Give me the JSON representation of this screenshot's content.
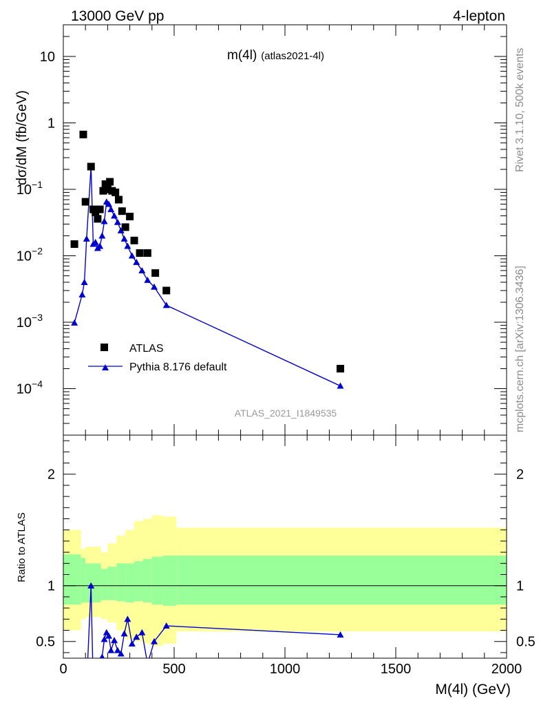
{
  "header": {
    "left": "13000 GeV pp",
    "right": "4-lepton"
  },
  "plot_title_main": "m(4l)",
  "plot_title_sub": "(atlas2021-4l)",
  "analysis_id": "ATLAS_2021_I1849535",
  "side_text": {
    "rivet": "Rivet 3.1.10,  500k events",
    "mcplots": "mcplots.cern.ch [arXiv:1306.3436]"
  },
  "legend": {
    "data_label": "ATLAS",
    "mc_label": "Pythia 8.176 default"
  },
  "colors": {
    "mc": "#0000cc",
    "data": "#000000",
    "band_inner": "#99ff99",
    "band_outer": "#ffff99"
  },
  "chart_data": [
    {
      "type": "scatter",
      "scale": "log",
      "ylabel": "dσ/dM (fb/GeV)",
      "xlim": [
        0,
        2000
      ],
      "ylim": [
        2e-05,
        30
      ],
      "y_ticks": [
        {
          "value": 0.0001,
          "mantissa": "10",
          "exp": "−4"
        },
        {
          "value": 0.001,
          "mantissa": "10",
          "exp": "−3"
        },
        {
          "value": 0.01,
          "mantissa": "10",
          "exp": "−2"
        },
        {
          "value": 0.1,
          "mantissa": "10",
          "exp": "−1"
        },
        {
          "value": 1,
          "mantissa": "1",
          "exp": ""
        },
        {
          "value": 10,
          "mantissa": "10",
          "exp": ""
        }
      ],
      "series": [
        {
          "name": "ATLAS",
          "x": [
            50,
            90,
            100,
            125,
            135,
            145,
            155,
            165,
            180,
            190,
            200,
            210,
            220,
            235,
            250,
            265,
            280,
            300,
            320,
            345,
            380,
            415,
            465,
            1250
          ],
          "y": [
            0.015,
            0.67,
            0.065,
            0.22,
            0.05,
            0.045,
            0.036,
            0.05,
            0.095,
            0.12,
            0.1,
            0.13,
            0.095,
            0.09,
            0.07,
            0.047,
            0.027,
            0.039,
            0.017,
            0.011,
            0.011,
            0.0055,
            0.003,
            0.0002
          ]
        },
        {
          "name": "Pythia 8.176 default",
          "x": [
            50,
            85,
            95,
            105,
            125,
            135,
            145,
            155,
            165,
            175,
            185,
            195,
            205,
            215,
            230,
            245,
            260,
            275,
            290,
            310,
            330,
            355,
            380,
            410,
            465,
            1250
          ],
          "y": [
            0.00098,
            0.0026,
            0.004,
            0.018,
            0.22,
            0.015,
            0.016,
            0.013,
            0.014,
            0.02,
            0.033,
            0.065,
            0.06,
            0.05,
            0.04,
            0.032,
            0.024,
            0.018,
            0.014,
            0.01,
            0.008,
            0.006,
            0.0043,
            0.0034,
            0.0018,
            0.00011
          ]
        }
      ]
    },
    {
      "type": "line",
      "ylabel": "Ratio to ATLAS",
      "xlabel": "M(4l) (GeV)",
      "xlim": [
        0,
        2000
      ],
      "ylim": [
        0.35,
        2.35
      ],
      "x_ticks": [
        "0",
        "500",
        "1000",
        "1500",
        "2000"
      ],
      "y_ticks": [
        "0.5",
        "1",
        "2"
      ],
      "ratio_x": [
        50,
        85,
        95,
        105,
        125,
        135,
        145,
        155,
        165,
        175,
        185,
        195,
        205,
        215,
        230,
        245,
        260,
        275,
        290,
        310,
        330,
        355,
        380,
        410,
        465,
        1250
      ],
      "ratio_y": [
        0.1,
        0.1,
        0.1,
        0.1,
        1.0,
        0.1,
        0.3,
        0.25,
        0.2,
        0.36,
        0.52,
        0.58,
        0.55,
        0.42,
        0.51,
        0.42,
        0.39,
        0.57,
        0.7,
        0.48,
        0.54,
        0.58,
        0.3,
        0.5,
        0.64,
        0.56
      ],
      "bands": [
        {
          "x0": 0,
          "x1": 80,
          "inner": [
            0.83,
            1.28
          ],
          "outer": [
            0.6,
            1.5
          ]
        },
        {
          "x0": 80,
          "x1": 100,
          "inner": [
            0.85,
            1.25
          ],
          "outer": [
            0.7,
            1.33
          ]
        },
        {
          "x0": 100,
          "x1": 170,
          "inner": [
            0.85,
            1.2
          ],
          "outer": [
            0.72,
            1.35
          ]
        },
        {
          "x0": 170,
          "x1": 200,
          "inner": [
            0.87,
            1.15
          ],
          "outer": [
            0.7,
            1.3
          ]
        },
        {
          "x0": 200,
          "x1": 240,
          "inner": [
            0.87,
            1.17
          ],
          "outer": [
            0.67,
            1.38
          ]
        },
        {
          "x0": 240,
          "x1": 280,
          "inner": [
            0.86,
            1.2
          ],
          "outer": [
            0.6,
            1.45
          ]
        },
        {
          "x0": 280,
          "x1": 320,
          "inner": [
            0.85,
            1.2
          ],
          "outer": [
            0.52,
            1.5
          ]
        },
        {
          "x0": 320,
          "x1": 360,
          "inner": [
            0.86,
            1.22
          ],
          "outer": [
            0.5,
            1.58
          ]
        },
        {
          "x0": 360,
          "x1": 400,
          "inner": [
            0.85,
            1.24
          ],
          "outer": [
            0.48,
            1.6
          ]
        },
        {
          "x0": 400,
          "x1": 450,
          "inner": [
            0.83,
            1.26
          ],
          "outer": [
            0.46,
            1.63
          ]
        },
        {
          "x0": 450,
          "x1": 510,
          "inner": [
            0.82,
            1.27
          ],
          "outer": [
            0.48,
            1.62
          ]
        },
        {
          "x0": 510,
          "x1": 2000,
          "inner": [
            0.83,
            1.27
          ],
          "outer": [
            0.59,
            1.52
          ]
        }
      ]
    }
  ]
}
